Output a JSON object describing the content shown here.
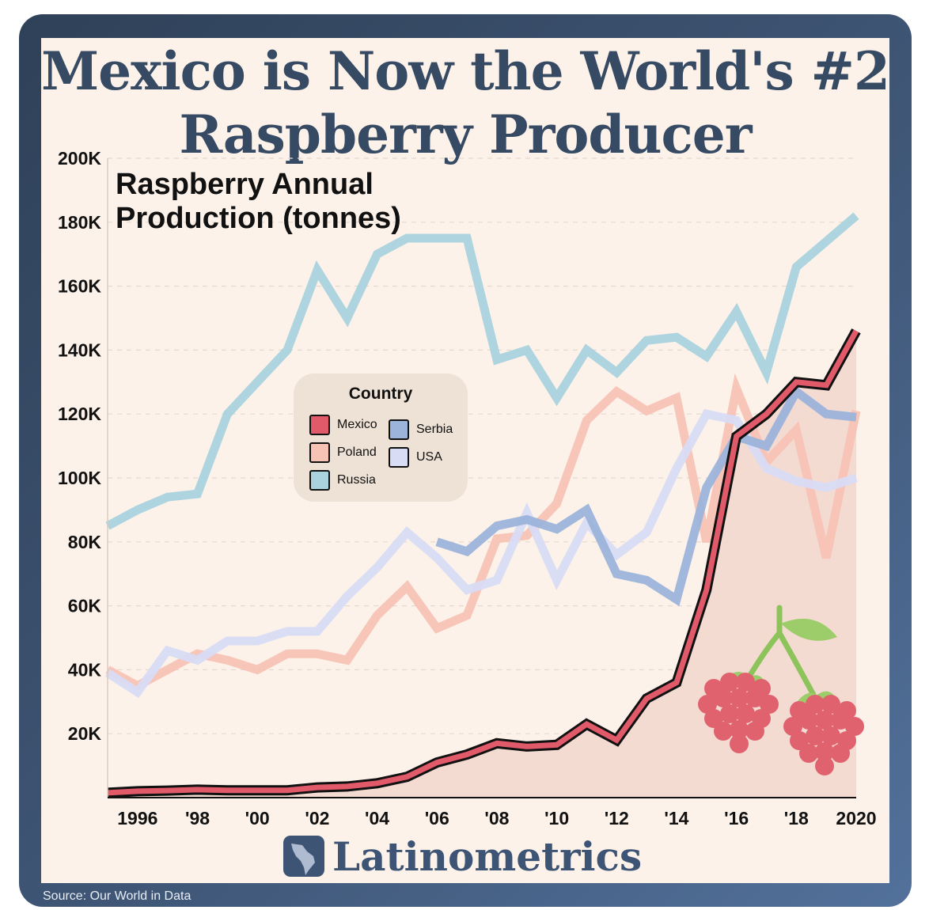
{
  "title": "Mexico is Now the World's #2 Raspberry Producer",
  "subtitle": "Raspberry Annual\nProduction (tonnes)",
  "brand": "Latinometrics",
  "source": "Source: Our World in Data",
  "legend": {
    "title": "Country",
    "items": [
      {
        "label": "Mexico",
        "color": "#e05a6a"
      },
      {
        "label": "Poland",
        "color": "#f7c3b5"
      },
      {
        "label": "Russia",
        "color": "#a9d2de"
      },
      {
        "label": "Serbia",
        "color": "#9cb3da"
      },
      {
        "label": "USA",
        "color": "#d8dcf5"
      }
    ]
  },
  "chart_data": {
    "type": "line",
    "title": "Raspberry Annual Production (tonnes)",
    "xlabel": "",
    "ylabel": "",
    "xlim": [
      1995,
      2020
    ],
    "ylim": [
      0,
      200000
    ],
    "y_ticks": [
      20000,
      40000,
      60000,
      80000,
      100000,
      120000,
      140000,
      160000,
      180000,
      200000
    ],
    "y_tick_labels": [
      "20K",
      "40K",
      "60K",
      "80K",
      "100K",
      "120K",
      "140K",
      "160K",
      "180K",
      "200K"
    ],
    "x_ticks": [
      1996,
      1998,
      2000,
      2002,
      2004,
      2006,
      2008,
      2010,
      2012,
      2014,
      2016,
      2018,
      2020
    ],
    "x_tick_labels": [
      "1996",
      "'98",
      "'00",
      "'02",
      "'04",
      "'06",
      "'08",
      "'10",
      "'12",
      "'14",
      "'16",
      "'18",
      "2020"
    ],
    "grid": true,
    "legend_position": "center-left",
    "series": [
      {
        "name": "Russia",
        "color": "#a9d2de",
        "x": [
          1995,
          1996,
          1997,
          1998,
          1999,
          2000,
          2001,
          2002,
          2003,
          2004,
          2005,
          2006,
          2007,
          2008,
          2009,
          2010,
          2011,
          2012,
          2013,
          2014,
          2015,
          2016,
          2017,
          2018,
          2019,
          2020
        ],
        "y": [
          85000,
          90000,
          94000,
          95000,
          120000,
          130000,
          140000,
          165000,
          150000,
          170000,
          175000,
          175000,
          175000,
          137000,
          140000,
          125000,
          140000,
          133000,
          143000,
          144000,
          138000,
          152000,
          133000,
          166000,
          174000,
          182000
        ]
      },
      {
        "name": "Poland",
        "color": "#f7c3b5",
        "x": [
          1995,
          1996,
          1997,
          1998,
          1999,
          2000,
          2001,
          2002,
          2003,
          2004,
          2005,
          2006,
          2007,
          2008,
          2009,
          2010,
          2011,
          2012,
          2013,
          2014,
          2015,
          2016,
          2017,
          2018,
          2019,
          2020
        ],
        "y": [
          40000,
          35000,
          40000,
          45000,
          43000,
          40000,
          45000,
          45000,
          43000,
          57000,
          66000,
          53000,
          57000,
          81000,
          82000,
          92000,
          118000,
          127000,
          121000,
          125000,
          80000,
          128000,
          105000,
          115000,
          75000,
          121000
        ]
      },
      {
        "name": "USA",
        "color": "#d8dcf5",
        "x": [
          1995,
          1996,
          1997,
          1998,
          1999,
          2000,
          2001,
          2002,
          2003,
          2004,
          2005,
          2006,
          2007,
          2008,
          2009,
          2010,
          2011,
          2012,
          2013,
          2014,
          2015,
          2016,
          2017,
          2018,
          2019,
          2020
        ],
        "y": [
          39000,
          33000,
          46000,
          43000,
          49000,
          49000,
          52000,
          52000,
          63000,
          72000,
          83000,
          75000,
          65000,
          68000,
          89000,
          68000,
          86000,
          76000,
          83000,
          103000,
          120000,
          118000,
          103000,
          99000,
          97000,
          100000
        ]
      },
      {
        "name": "Serbia",
        "color": "#9cb3da",
        "x": [
          2006,
          2007,
          2008,
          2009,
          2010,
          2011,
          2012,
          2013,
          2014,
          2015,
          2016,
          2017,
          2018,
          2019,
          2020
        ],
        "y": [
          80000,
          77000,
          85000,
          87000,
          84000,
          90000,
          70000,
          68000,
          62000,
          97000,
          113000,
          110000,
          127000,
          120000,
          119000
        ]
      },
      {
        "name": "Mexico",
        "color": "#e05a6a",
        "x": [
          1995,
          1996,
          1997,
          1998,
          1999,
          2000,
          2001,
          2002,
          2003,
          2004,
          2005,
          2006,
          2007,
          2008,
          2009,
          2010,
          2011,
          2012,
          2013,
          2014,
          2015,
          2016,
          2017,
          2018,
          2019,
          2020
        ],
        "y": [
          1500,
          2000,
          2200,
          2500,
          2300,
          2300,
          2300,
          3200,
          3500,
          4500,
          6500,
          11000,
          13500,
          17000,
          16000,
          16500,
          23000,
          18000,
          31000,
          36000,
          65000,
          113000,
          120000,
          130000,
          129000,
          146000
        ]
      }
    ]
  }
}
